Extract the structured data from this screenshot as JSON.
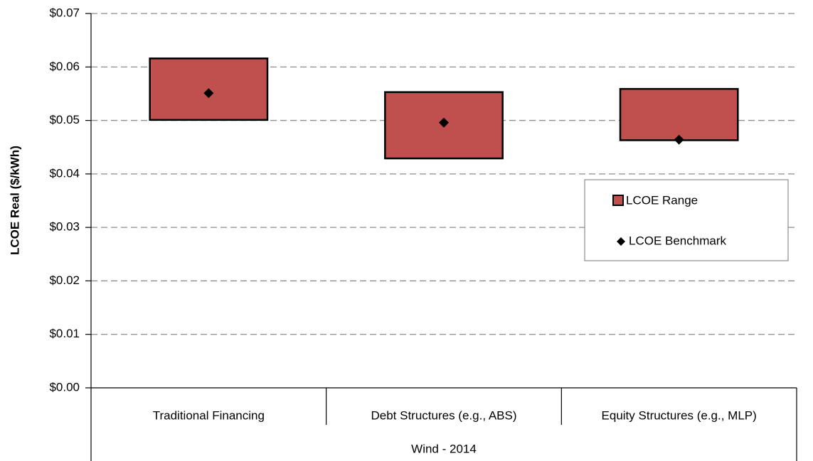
{
  "chart_data": {
    "type": "floating-bar",
    "y_label": "LCOE Real ($/kWh)",
    "categories": [
      "Traditional Financing",
      "Debt Structures (e.g., ABS)",
      "Equity Structures (e.g., MLP)"
    ],
    "group": "Wind - 2014",
    "series": [
      {
        "name": "LCOE Range",
        "color": "#c0504d",
        "low": [
          0.0501,
          0.0429,
          0.0463
        ],
        "high": [
          0.0616,
          0.0553,
          0.0559
        ]
      },
      {
        "name": "LCOE Benchmark",
        "color": "#000000",
        "values": [
          0.0551,
          0.0496,
          0.0464
        ]
      }
    ],
    "ylim": [
      0,
      0.07
    ],
    "yticks": [
      {
        "value": 0,
        "label": "$0.00"
      },
      {
        "value": 0.01,
        "label": "$0.01"
      },
      {
        "value": 0.02,
        "label": "$0.02"
      },
      {
        "value": 0.03,
        "label": "$0.03"
      },
      {
        "value": 0.04,
        "label": "$0.04"
      },
      {
        "value": 0.05,
        "label": "$0.05"
      },
      {
        "value": 0.06,
        "label": "$0.06"
      },
      {
        "value": 0.07,
        "label": "$0.07"
      }
    ],
    "grid": true,
    "legend": "right"
  }
}
